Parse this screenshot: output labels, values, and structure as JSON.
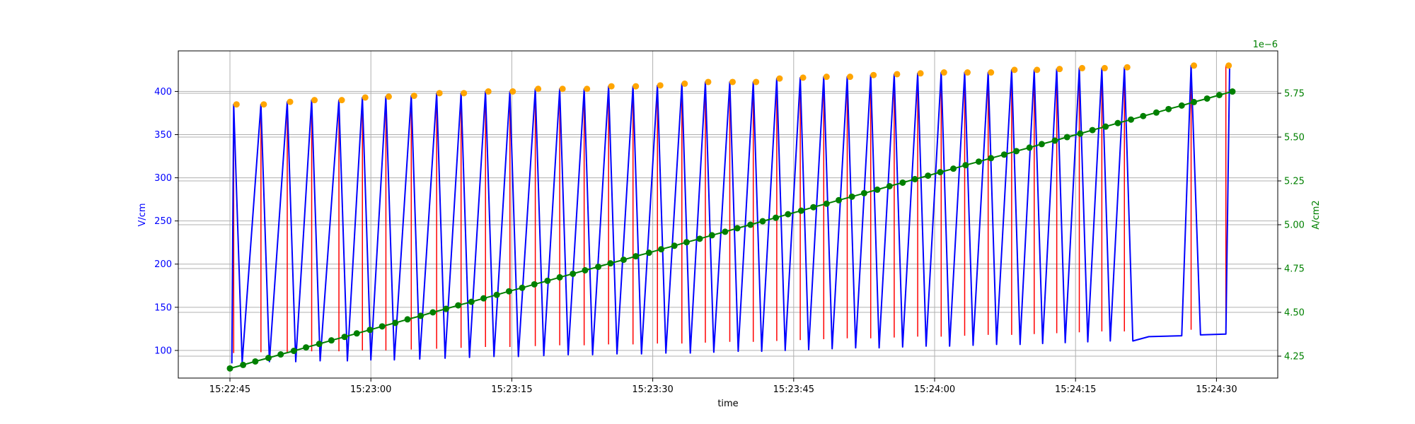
{
  "chart_data": {
    "type": "line",
    "xlabel": "time",
    "ylabel_left": "V/cm",
    "ylabel_right": "A/cm2",
    "right_axis_offset_text": "1e−6",
    "grid": true,
    "x_tick_labels": [
      "15:22:45",
      "15:23:00",
      "15:23:15",
      "15:23:30",
      "15:23:45",
      "15:24:00",
      "15:24:15",
      "15:24:30"
    ],
    "x_tick_seconds": [
      0,
      15,
      30,
      45,
      60,
      75,
      90,
      105
    ],
    "left_ylim": [
      68,
      447
    ],
    "left_ticks": [
      100,
      150,
      200,
      250,
      300,
      350,
      400
    ],
    "right_ylim": [
      4.125,
      5.992
    ],
    "right_ticks": [
      "4.25",
      "4.50",
      "4.75",
      "5.00",
      "5.25",
      "5.50",
      "5.75"
    ],
    "right_tick_values": [
      4.25,
      4.5,
      4.75,
      5.0,
      5.25,
      5.5,
      5.75
    ],
    "colors": {
      "voltage": "#0000ff",
      "pulse": "#ff0000",
      "peak": "#ffa500",
      "current": "#008000",
      "grid": "#b0b0b0",
      "axis": "#000000"
    },
    "series": [
      {
        "axis": "left",
        "times": [
          0.4,
          3.3,
          6.1,
          8.7,
          11.6,
          14.1,
          16.6,
          19.3,
          22.0,
          24.6,
          27.2,
          29.8,
          32.5,
          35.1,
          37.7,
          40.3,
          42.9,
          45.5,
          48.1,
          50.6,
          53.2,
          55.7,
          58.2,
          60.7,
          63.2,
          65.7,
          68.2,
          70.7,
          73.2,
          75.7,
          78.2,
          80.7,
          83.2,
          85.6,
          88.0,
          90.4,
          92.8,
          95.2,
          102.3,
          106.0
        ],
        "peak_values": [
          385,
          385,
          388,
          390,
          390,
          393,
          394,
          395,
          398,
          398,
          400,
          400,
          403,
          403,
          403,
          406,
          406,
          407,
          409,
          411,
          411,
          411,
          415,
          416,
          417,
          417,
          419,
          420,
          421,
          422,
          422,
          422,
          425,
          425,
          426,
          427,
          427,
          428,
          430,
          430
        ],
        "base_values": [
          85,
          86,
          86,
          87,
          87,
          88,
          88,
          89,
          90,
          91,
          92,
          92,
          93,
          94,
          94,
          95,
          95,
          96,
          96,
          97,
          98,
          98,
          99,
          100,
          101,
          102,
          102,
          103,
          104,
          104,
          105,
          106,
          106,
          107,
          108,
          109,
          110,
          110,
          112,
          113
        ],
        "trace_tail": [
          [
            97.8,
            116
          ],
          [
            101.3,
            117
          ],
          [
            102.3,
            430
          ],
          [
            103.3,
            118
          ],
          [
            106.0,
            119
          ],
          [
            106.4,
            430
          ]
        ]
      },
      {
        "axis": "right",
        "times": [
          0.0,
          1.4,
          2.7,
          4.1,
          5.4,
          6.8,
          8.1,
          9.5,
          10.8,
          12.2,
          13.5,
          14.9,
          16.2,
          17.6,
          18.9,
          20.3,
          21.6,
          23.0,
          24.3,
          25.7,
          27.0,
          28.4,
          29.7,
          31.1,
          32.4,
          33.8,
          35.1,
          36.5,
          37.8,
          39.2,
          40.5,
          41.9,
          43.2,
          44.6,
          45.9,
          47.3,
          48.6,
          50.0,
          51.3,
          52.7,
          54.0,
          55.4,
          56.7,
          58.1,
          59.4,
          60.8,
          62.1,
          63.5,
          64.8,
          66.2,
          67.5,
          68.9,
          70.2,
          71.6,
          72.9,
          74.3,
          75.6,
          77.0,
          78.3,
          79.7,
          81.0,
          82.4,
          83.7,
          85.1,
          86.4,
          87.8,
          89.1,
          90.5,
          91.8,
          93.2,
          94.5,
          95.9,
          97.2,
          98.6,
          99.9,
          101.3,
          102.6,
          104.0,
          105.3,
          106.7
        ],
        "values": [
          4.18,
          4.2,
          4.22,
          4.24,
          4.26,
          4.28,
          4.3,
          4.32,
          4.34,
          4.36,
          4.38,
          4.4,
          4.42,
          4.44,
          4.46,
          4.48,
          4.5,
          4.52,
          4.54,
          4.56,
          4.58,
          4.6,
          4.62,
          4.64,
          4.66,
          4.68,
          4.7,
          4.72,
          4.74,
          4.76,
          4.78,
          4.8,
          4.82,
          4.84,
          4.86,
          4.88,
          4.9,
          4.92,
          4.94,
          4.96,
          4.98,
          5.0,
          5.02,
          5.04,
          5.06,
          5.08,
          5.1,
          5.12,
          5.14,
          5.16,
          5.18,
          5.2,
          5.22,
          5.24,
          5.26,
          5.28,
          5.3,
          5.32,
          5.34,
          5.36,
          5.38,
          5.4,
          5.42,
          5.44,
          5.46,
          5.48,
          5.5,
          5.52,
          5.54,
          5.56,
          5.58,
          5.6,
          5.62,
          5.64,
          5.66,
          5.68,
          5.7,
          5.72,
          5.74,
          5.76
        ]
      }
    ]
  }
}
